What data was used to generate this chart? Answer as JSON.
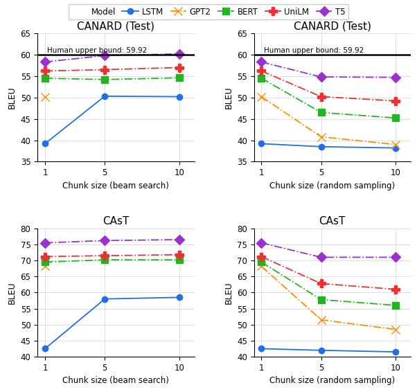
{
  "x_ticks": [
    1,
    5,
    10
  ],
  "human_upper_bound": 59.92,
  "models": [
    "LSTM",
    "GPT2",
    "BERT",
    "UniLM",
    "T5"
  ],
  "model_colors": [
    "#1f6fe8",
    "#ff8c00",
    "#21b521",
    "#f03030",
    "#9b30d0"
  ],
  "model_markers": [
    "o",
    "x",
    "s",
    "P",
    "D"
  ],
  "model_markersizes": [
    6,
    8,
    7,
    8,
    7
  ],
  "model_linestyles": [
    "-",
    "-.",
    "-.",
    "-.",
    "-."
  ],
  "canard_beam": {
    "title": "CANARD (Test)",
    "xlabel": "Chunk size (beam search)",
    "ylabel": "BLEU",
    "ylim": [
      35,
      65
    ],
    "yticks": [
      35,
      40,
      45,
      50,
      55,
      60,
      65
    ],
    "LSTM": [
      39.2,
      50.3,
      50.2
    ],
    "GPT2": [
      50.2,
      null,
      null
    ],
    "BERT": [
      54.5,
      54.2,
      54.6
    ],
    "UniLM": [
      56.2,
      56.5,
      57.0
    ],
    "T5": [
      58.3,
      59.8,
      60.2
    ]
  },
  "canard_random": {
    "title": "CANARD (Test)",
    "xlabel": "Chunk size (random sampling)",
    "ylabel": "BLEU",
    "ylim": [
      35,
      65
    ],
    "yticks": [
      35,
      40,
      45,
      50,
      55,
      60,
      65
    ],
    "LSTM": [
      39.2,
      38.5,
      38.2
    ],
    "GPT2": [
      50.2,
      40.8,
      39.0
    ],
    "BERT": [
      54.5,
      46.5,
      45.2
    ],
    "UniLM": [
      56.2,
      50.2,
      49.2
    ],
    "T5": [
      58.3,
      54.8,
      54.7
    ]
  },
  "cast_beam": {
    "title": "CAsT",
    "xlabel": "Chunk size (beam search)",
    "ylabel": "BLEU",
    "ylim": [
      40,
      80
    ],
    "yticks": [
      40,
      45,
      50,
      55,
      60,
      65,
      70,
      75,
      80
    ],
    "LSTM": [
      42.5,
      58.0,
      58.5
    ],
    "GPT2": [
      68.2,
      null,
      null
    ],
    "BERT": [
      69.5,
      70.2,
      70.2
    ],
    "UniLM": [
      71.2,
      71.5,
      71.8
    ],
    "T5": [
      75.5,
      76.2,
      76.5
    ]
  },
  "cast_random": {
    "title": "CAsT",
    "xlabel": "Chunk size (random sampling)",
    "ylabel": "BLEU",
    "ylim": [
      40,
      80
    ],
    "yticks": [
      40,
      45,
      50,
      55,
      60,
      65,
      70,
      75,
      80
    ],
    "LSTM": [
      42.5,
      42.0,
      41.5
    ],
    "GPT2": [
      68.2,
      51.5,
      48.5
    ],
    "BERT": [
      69.5,
      57.8,
      56.0
    ],
    "UniLM": [
      71.2,
      62.8,
      61.0
    ],
    "T5": [
      75.5,
      71.0,
      71.0
    ]
  }
}
